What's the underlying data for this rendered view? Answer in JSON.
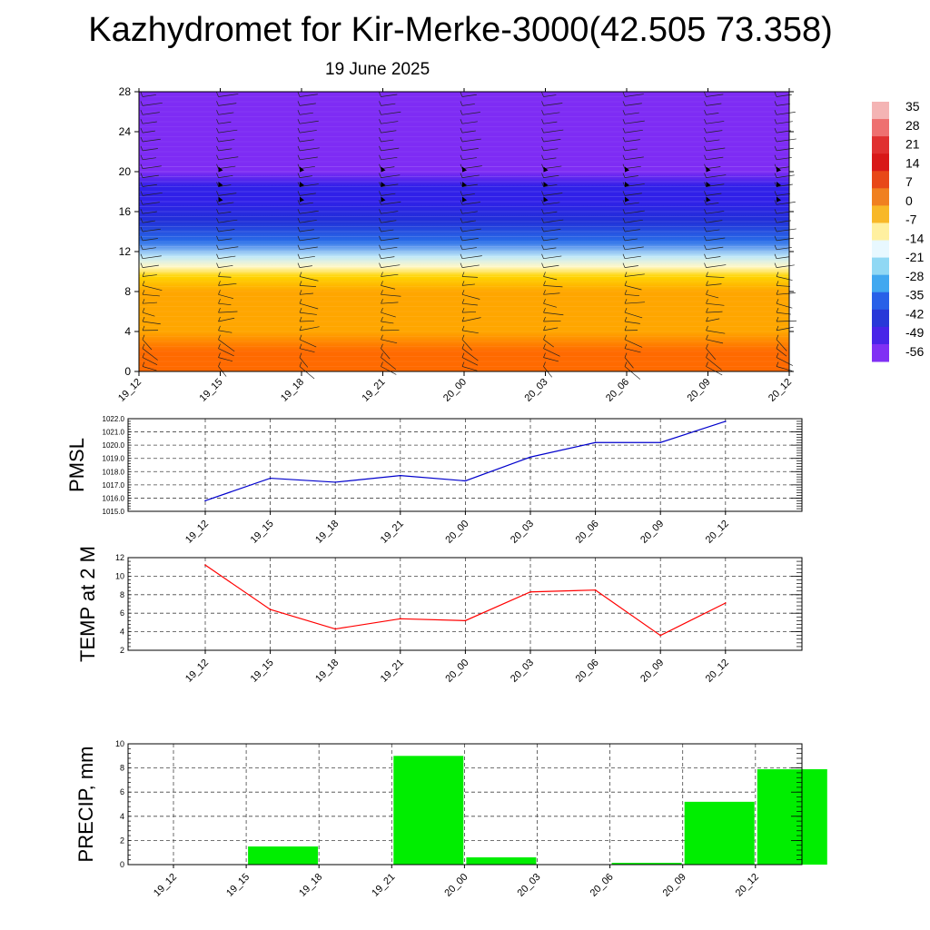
{
  "title": "Kazhydromet for Kir-Merke-3000(42.505 73.358)",
  "subtitle": "19 June 2025",
  "colors": {
    "pmsl_line": "#0000cc",
    "temp_line": "#ff0000",
    "precip_bar": "#00ee00",
    "temp_colormap": [
      "#ff6a00",
      "#ffa600",
      "#ffd400",
      "#fff8c8",
      "#bfe8f8",
      "#5cc0f0",
      "#2a6ee8",
      "#2030d8",
      "#3020e8",
      "#7e2cf4"
    ]
  },
  "chart_data": [
    {
      "id": "cross_section",
      "type": "heatmap",
      "title": "",
      "xlabel": "",
      "ylabel": "",
      "x_ticks": [
        "19_12",
        "19_15",
        "19_18",
        "19_21",
        "20_00",
        "20_03",
        "20_06",
        "20_09",
        "20_12"
      ],
      "y_ticks": [
        0,
        4,
        8,
        12,
        16,
        20,
        24,
        28
      ],
      "ylim": [
        0,
        28
      ],
      "colorbar": {
        "labels": [
          "35",
          "28",
          "21",
          "14",
          "7",
          "0",
          "-7",
          "-14",
          "-21",
          "-28",
          "-35",
          "-42",
          "-49",
          "-56"
        ],
        "colors": [
          "#f4b4b4",
          "#ee7070",
          "#e03030",
          "#d81818",
          "#e84818",
          "#f08020",
          "#f8b828",
          "#fff0a0",
          "#e8f8ff",
          "#90d8f4",
          "#40a8f0",
          "#2860e8",
          "#2838d8",
          "#4824e8",
          "#8030f4"
        ]
      },
      "field": {
        "levels": [
          0,
          2,
          4,
          6,
          8,
          9.5,
          10.5,
          11.5,
          13,
          15,
          17,
          18.5,
          20,
          22,
          28
        ],
        "values": [
          21,
          18,
          15,
          12,
          9,
          4,
          -8,
          -18,
          -28,
          -38,
          -46,
          -52,
          -56,
          -58,
          -58
        ]
      },
      "wind_barb_columns": [
        "19_12",
        "19_15",
        "19_18",
        "19_21",
        "20_00",
        "20_03",
        "20_06",
        "20_09",
        "20_12"
      ]
    },
    {
      "id": "pmsl",
      "type": "line",
      "title": "",
      "xlabel": "",
      "ylabel": "PMSL",
      "categories": [
        "19_12",
        "19_15",
        "19_18",
        "19_21",
        "20_00",
        "20_03",
        "20_06",
        "20_09",
        "20_12"
      ],
      "values": [
        1015.8,
        1017.5,
        1017.2,
        1017.7,
        1017.3,
        1019.1,
        1020.2,
        1020.2,
        1021.8
      ],
      "y_ticks": [
        "1015.0",
        "1016.0",
        "1017.0",
        "1018.0",
        "1019.0",
        "1020.0",
        "1021.0",
        "1022.0"
      ],
      "ylim": [
        1015.0,
        1022.0
      ],
      "grid": true
    },
    {
      "id": "temp2m",
      "type": "line",
      "title": "",
      "xlabel": "",
      "ylabel": "TEMP at 2 M",
      "categories": [
        "19_12",
        "19_15",
        "19_18",
        "19_21",
        "20_00",
        "20_03",
        "20_06",
        "20_09",
        "20_12"
      ],
      "values": [
        11.2,
        6.4,
        4.3,
        5.4,
        5.2,
        8.3,
        8.5,
        3.6,
        7.1
      ],
      "y_ticks": [
        "2",
        "4",
        "6",
        "8",
        "10",
        "12"
      ],
      "ylim": [
        2,
        12
      ],
      "grid": true
    },
    {
      "id": "precip",
      "type": "bar",
      "title": "",
      "xlabel": "",
      "ylabel": "PRECIP, mm",
      "categories": [
        "19_12",
        "19_15",
        "19_18",
        "19_21",
        "20_00",
        "20_03",
        "20_06",
        "20_09",
        "20_12"
      ],
      "values": [
        0,
        1.5,
        0,
        9.0,
        0.6,
        0,
        0.15,
        5.2,
        7.9
      ],
      "y_ticks": [
        "0",
        "2",
        "4",
        "6",
        "8",
        "10"
      ],
      "ylim": [
        0,
        10
      ],
      "grid": true
    }
  ]
}
